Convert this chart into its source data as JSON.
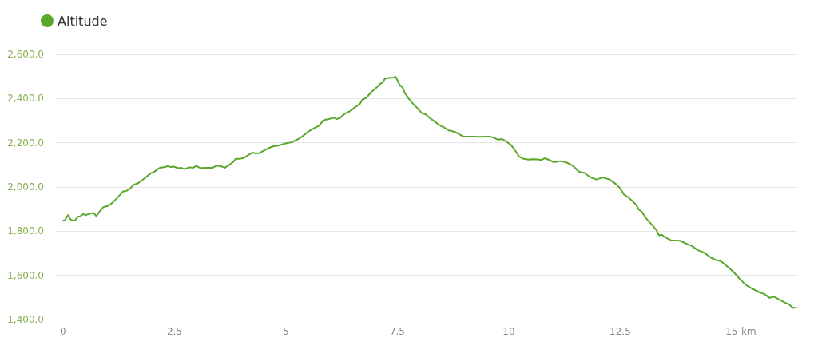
{
  "chart_data": {
    "type": "line",
    "x": [
      0,
      0.04,
      0.11,
      0.17,
      0.23,
      0.27,
      0.33,
      0.38,
      0.45,
      0.51,
      0.59,
      0.68,
      0.75,
      0.82,
      0.91,
      0.99,
      1.08,
      1.21,
      1.34,
      1.42,
      1.51,
      1.58,
      1.69,
      1.81,
      1.96,
      2.05,
      2.17,
      2.29,
      2.35,
      2.41,
      2.48,
      2.59,
      2.65,
      2.72,
      2.83,
      2.92,
      2.99,
      3.08,
      3.18,
      3.27,
      3.36,
      3.45,
      3.54,
      3.63,
      3.72,
      3.81,
      3.87,
      3.95,
      4.05,
      4.14,
      4.25,
      4.32,
      4.41,
      4.5,
      4.62,
      4.74,
      4.83,
      4.92,
      5.01,
      5.13,
      5.27,
      5.39,
      5.51,
      5.63,
      5.75,
      5.84,
      5.96,
      6.08,
      6.14,
      6.22,
      6.32,
      6.44,
      6.56,
      6.66,
      6.71,
      6.8,
      6.92,
      7.04,
      7.13,
      7.17,
      7.22,
      7.31,
      7.4,
      7.46,
      7.49,
      7.55,
      7.61,
      7.67,
      7.76,
      7.84,
      7.96,
      8.05,
      8.14,
      8.23,
      8.35,
      8.44,
      8.56,
      8.65,
      8.74,
      8.86,
      8.98,
      9.1,
      9.22,
      9.34,
      9.46,
      9.58,
      9.67,
      9.76,
      9.84,
      9.93,
      10.05,
      10.14,
      10.23,
      10.32,
      10.44,
      10.53,
      10.65,
      10.74,
      10.8,
      10.89,
      11.01,
      11.16,
      11.28,
      11.43,
      11.58,
      11.7,
      11.82,
      11.96,
      12.11,
      12.26,
      12.41,
      12.5,
      12.59,
      12.67,
      12.77,
      12.86,
      12.92,
      12.98,
      13.1,
      13.22,
      13.31,
      13.37,
      13.43,
      13.52,
      13.64,
      13.84,
      13.97,
      14.11,
      14.23,
      14.38,
      14.53,
      14.65,
      14.74,
      14.86,
      15.04,
      15.19,
      15.31,
      15.46,
      15.64,
      15.73,
      15.85,
      15.94,
      16.06,
      16.18,
      16.29,
      16.38,
      16.44
    ],
    "series": [
      {
        "name": "Altitude",
        "color": "#5aa72b",
        "values": [
          1848,
          1849,
          1873,
          1853,
          1847,
          1849,
          1865,
          1867,
          1877,
          1873,
          1879,
          1883,
          1868,
          1889,
          1910,
          1913,
          1924,
          1949,
          1979,
          1982,
          1994,
          2009,
          2018,
          2036,
          2061,
          2069,
          2087,
          2090,
          2095,
          2090,
          2092,
          2085,
          2087,
          2081,
          2089,
          2087,
          2095,
          2085,
          2087,
          2087,
          2087,
          2097,
          2094,
          2087,
          2099,
          2112,
          2127,
          2127,
          2131,
          2142,
          2156,
          2152,
          2154,
          2164,
          2177,
          2185,
          2187,
          2193,
          2198,
          2202,
          2216,
          2232,
          2252,
          2265,
          2278,
          2302,
          2307,
          2313,
          2307,
          2314,
          2331,
          2343,
          2362,
          2376,
          2394,
          2403,
          2430,
          2451,
          2469,
          2473,
          2490,
          2493,
          2494,
          2499,
          2488,
          2463,
          2451,
          2424,
          2398,
          2379,
          2354,
          2334,
          2328,
          2312,
          2294,
          2280,
          2268,
          2256,
          2252,
          2242,
          2228,
          2228,
          2228,
          2227,
          2228,
          2228,
          2222,
          2214,
          2217,
          2208,
          2190,
          2166,
          2138,
          2128,
          2124,
          2126,
          2125,
          2122,
          2130,
          2124,
          2112,
          2117,
          2112,
          2097,
          2069,
          2063,
          2045,
          2034,
          2043,
          2034,
          2012,
          1994,
          1964,
          1955,
          1937,
          1919,
          1897,
          1889,
          1853,
          1827,
          1805,
          1781,
          1784,
          1771,
          1759,
          1757,
          1745,
          1733,
          1715,
          1703,
          1681,
          1669,
          1666,
          1648,
          1616,
          1582,
          1558,
          1540,
          1522,
          1516,
          1498,
          1504,
          1492,
          1478,
          1468,
          1452,
          1455
        ]
      }
    ],
    "xlabel": "km",
    "xlim": [
      -0.16,
      16.47
    ],
    "xticks": [
      0,
      2.5,
      5,
      7.5,
      10,
      12.5,
      15
    ],
    "ylim": [
      1400,
      2600
    ],
    "yticks": [
      {
        "value": 1400,
        "label": "1,400.0"
      },
      {
        "value": 1600,
        "label": "1,600.0"
      },
      {
        "value": 1800,
        "label": "1,800.0"
      },
      {
        "value": 2000,
        "label": "2,000.0"
      },
      {
        "value": 2200,
        "label": "2,200.0"
      },
      {
        "value": 2400,
        "label": "2,400.0"
      },
      {
        "value": 2600,
        "label": "2,600.0"
      }
    ],
    "grid": "y",
    "legend": "top left",
    "marker": "none",
    "line_style": "solid"
  }
}
